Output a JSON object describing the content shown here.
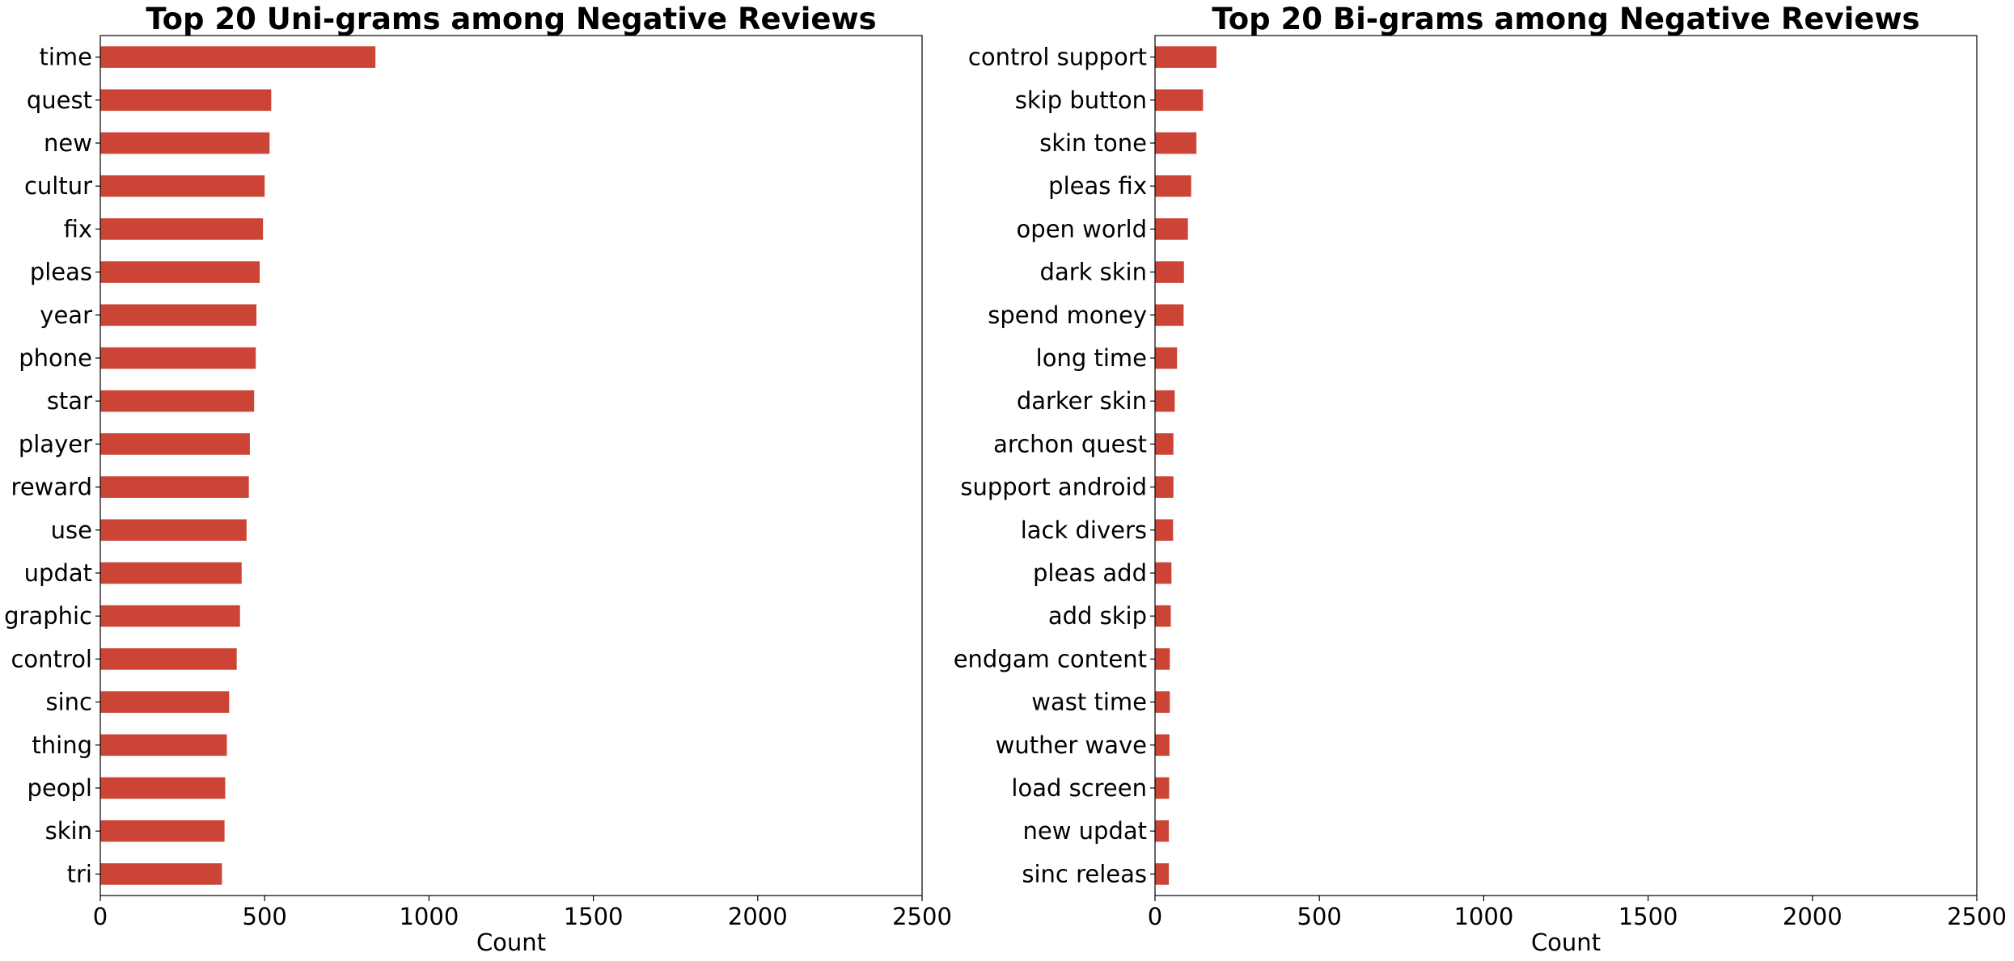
{
  "chart_data": [
    {
      "type": "bar",
      "orientation": "horizontal",
      "title": "Top 20 Uni-grams among Negative Reviews",
      "xlabel": "Count",
      "ylabel": "",
      "xlim": [
        0,
        2500
      ],
      "xticks": [
        0,
        500,
        1000,
        1500,
        2000,
        2500
      ],
      "grid": false,
      "bar_color": "#cc4435",
      "categories": [
        "time",
        "quest",
        "new",
        "cultur",
        "fix",
        "pleas",
        "year",
        "phone",
        "star",
        "player",
        "reward",
        "use",
        "updat",
        "graphic",
        "control",
        "sinc",
        "thing",
        "peopl",
        "skin",
        "tri"
      ],
      "values": [
        837,
        520,
        515,
        500,
        495,
        485,
        475,
        473,
        468,
        455,
        452,
        445,
        430,
        425,
        415,
        392,
        385,
        380,
        378,
        370
      ]
    },
    {
      "type": "bar",
      "orientation": "horizontal",
      "title": "Top 20 Bi-grams among Negative Reviews",
      "xlabel": "Count",
      "ylabel": "",
      "xlim": [
        0,
        2500
      ],
      "xticks": [
        0,
        500,
        1000,
        1500,
        2000,
        2500
      ],
      "grid": false,
      "bar_color": "#cc4435",
      "categories": [
        "control support",
        "skip button",
        "skin tone",
        "pleas fix",
        "open world",
        "dark skin",
        "spend money",
        "long time",
        "darker skin",
        "archon quest",
        "support android",
        "lack divers",
        "pleas add",
        "add skip",
        "endgam content",
        "wast time",
        "wuther wave",
        "load screen",
        "new updat",
        "sinc releas"
      ],
      "values": [
        187,
        146,
        126,
        110,
        100,
        88,
        87,
        67,
        60,
        56,
        56,
        55,
        50,
        48,
        45,
        45,
        44,
        43,
        42,
        42
      ]
    }
  ]
}
